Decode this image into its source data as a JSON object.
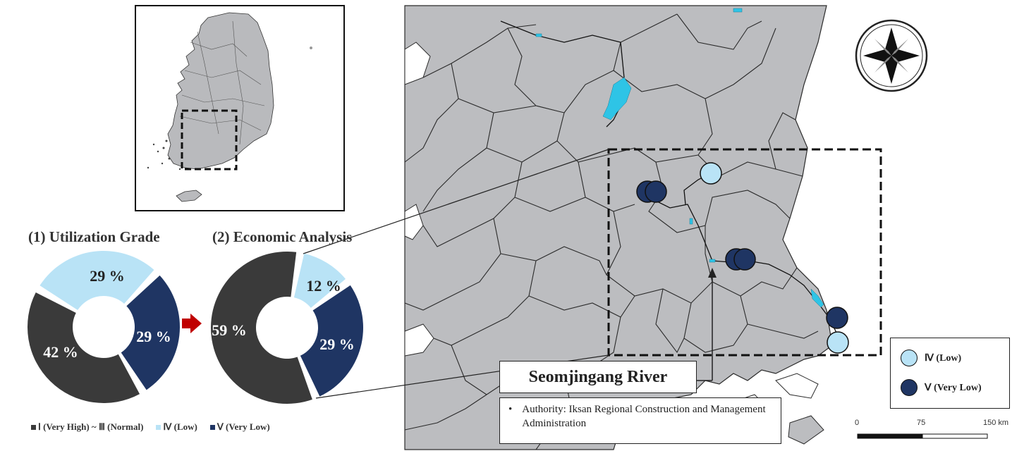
{
  "colors": {
    "land": "#bcbdc0",
    "border": "#2a2a2a",
    "water": "#2ec4e6",
    "grade_high": "#3a3a3a",
    "grade_low": "#b9e3f6",
    "grade_very_low": "#1f3563",
    "arrow": "#c00000"
  },
  "panel1": {
    "title": "(1) Utilization Grade",
    "slices": [
      {
        "label": "42 %",
        "percent": 42,
        "grade": "high"
      },
      {
        "label": "29 %",
        "percent": 29,
        "grade": "low"
      },
      {
        "label": "29 %",
        "percent": 29,
        "grade": "very_low"
      }
    ]
  },
  "panel2": {
    "title": "(2) Economic Analysis",
    "slices": [
      {
        "label": "59 %",
        "percent": 59,
        "grade": "high"
      },
      {
        "label": "12 %",
        "percent": 12,
        "grade": "low"
      },
      {
        "label": "29 %",
        "percent": 29,
        "grade": "very_low"
      }
    ]
  },
  "bottom_legend": {
    "high": "Ⅰ (Very High) ~ Ⅲ (Normal)",
    "low": "Ⅳ (Low)",
    "very_low": "Ⅴ (Very Low)"
  },
  "map": {
    "river_name": "Seomjingang River",
    "authority": "Authority: Iksan Regional Construction and Management Administration",
    "sites": [
      {
        "grade": "low"
      },
      {
        "grade": "very_low"
      },
      {
        "grade": "very_low"
      },
      {
        "grade": "very_low"
      },
      {
        "grade": "low"
      }
    ]
  },
  "legend": {
    "low": "Ⅳ (Low)",
    "very_low": "Ⅴ (Very Low)"
  },
  "scale_bar": {
    "ticks": [
      "0",
      "75",
      "150 km"
    ]
  },
  "compass": {
    "icon": "compass-rose-icon"
  }
}
